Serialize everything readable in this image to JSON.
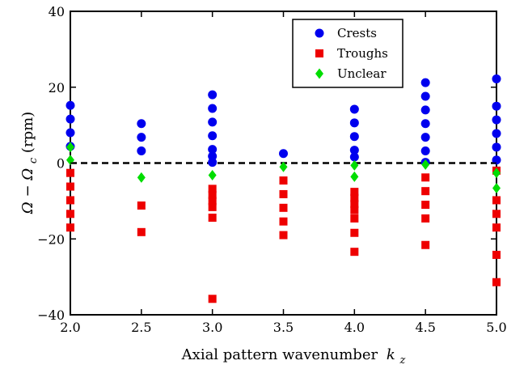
{
  "chart_data": {
    "type": "scatter",
    "xlabel": "Axial pattern wavenumber",
    "xlabel_symbol": "k",
    "xlabel_sub": "z",
    "ylabel_parts": [
      "Ω − Ω",
      "c",
      " (rpm)"
    ],
    "xlim": [
      2.0,
      5.0
    ],
    "ylim": [
      -40,
      40
    ],
    "xticks": [
      2.0,
      2.5,
      3.0,
      3.5,
      4.0,
      4.5,
      5.0
    ],
    "xtick_labels": [
      "2.0",
      "2.5",
      "3.0",
      "3.5",
      "4.0",
      "4.5",
      "5.0"
    ],
    "yticks": [
      -40,
      -20,
      0,
      20,
      40
    ],
    "ytick_labels": [
      "−40",
      "−20",
      "0",
      "20",
      "40"
    ],
    "reference_line": {
      "y": 0,
      "style": "dashed"
    },
    "legend_position": "top-right",
    "series": [
      {
        "name": "Crests",
        "marker": "circle",
        "color": "#0000ee",
        "points": [
          [
            2.0,
            15.2
          ],
          [
            2.0,
            11.6
          ],
          [
            2.0,
            8.0
          ],
          [
            2.0,
            4.4
          ],
          [
            2.5,
            10.4
          ],
          [
            2.5,
            6.8
          ],
          [
            2.5,
            3.2
          ],
          [
            3.0,
            18.0
          ],
          [
            3.0,
            14.4
          ],
          [
            3.0,
            10.8
          ],
          [
            3.0,
            7.2
          ],
          [
            3.0,
            3.6
          ],
          [
            3.0,
            1.8
          ],
          [
            3.0,
            0.2
          ],
          [
            3.5,
            2.5
          ],
          [
            4.0,
            14.2
          ],
          [
            4.0,
            10.6
          ],
          [
            4.0,
            7.0
          ],
          [
            4.0,
            3.4
          ],
          [
            4.0,
            1.6
          ],
          [
            4.5,
            21.2
          ],
          [
            4.5,
            17.6
          ],
          [
            4.5,
            14.0
          ],
          [
            4.5,
            10.4
          ],
          [
            4.5,
            6.8
          ],
          [
            4.5,
            3.2
          ],
          [
            4.5,
            0.2
          ],
          [
            5.0,
            22.2
          ],
          [
            5.0,
            15.0
          ],
          [
            5.0,
            11.4
          ],
          [
            5.0,
            7.8
          ],
          [
            5.0,
            4.2
          ],
          [
            5.0,
            0.8
          ]
        ]
      },
      {
        "name": "Troughs",
        "marker": "square",
        "color": "#ee0000",
        "points": [
          [
            2.0,
            -2.6
          ],
          [
            2.0,
            -6.2
          ],
          [
            2.0,
            -9.8
          ],
          [
            2.0,
            -13.4
          ],
          [
            2.0,
            -17.0
          ],
          [
            2.5,
            -11.2
          ],
          [
            2.5,
            -18.2
          ],
          [
            3.0,
            -6.8
          ],
          [
            3.0,
            -8.4
          ],
          [
            3.0,
            -10.0
          ],
          [
            3.0,
            -11.6
          ],
          [
            3.0,
            -14.4
          ],
          [
            3.0,
            -35.8
          ],
          [
            3.5,
            -4.6
          ],
          [
            3.5,
            -8.2
          ],
          [
            3.5,
            -11.8
          ],
          [
            3.5,
            -15.4
          ],
          [
            3.5,
            -19.0
          ],
          [
            4.0,
            -7.6
          ],
          [
            4.0,
            -9.2
          ],
          [
            4.0,
            -10.8
          ],
          [
            4.0,
            -12.4
          ],
          [
            4.0,
            -14.6
          ],
          [
            4.0,
            -18.4
          ],
          [
            4.0,
            -23.4
          ],
          [
            4.5,
            -3.8
          ],
          [
            4.5,
            -7.4
          ],
          [
            4.5,
            -11.0
          ],
          [
            4.5,
            -14.6
          ],
          [
            4.5,
            -21.6
          ],
          [
            5.0,
            -2.0
          ],
          [
            5.0,
            -9.8
          ],
          [
            5.0,
            -13.4
          ],
          [
            5.0,
            -17.0
          ],
          [
            5.0,
            -24.2
          ],
          [
            5.0,
            -31.4
          ]
        ]
      },
      {
        "name": "Unclear",
        "marker": "diamond",
        "color": "#00dd00",
        "points": [
          [
            2.0,
            4.2
          ],
          [
            2.0,
            0.8
          ],
          [
            2.5,
            -3.8
          ],
          [
            3.0,
            -3.2
          ],
          [
            3.5,
            -1.0
          ],
          [
            4.0,
            -0.6
          ],
          [
            4.0,
            -3.6
          ],
          [
            4.5,
            -0.4
          ],
          [
            5.0,
            -2.6
          ],
          [
            5.0,
            -6.6
          ]
        ]
      }
    ]
  }
}
